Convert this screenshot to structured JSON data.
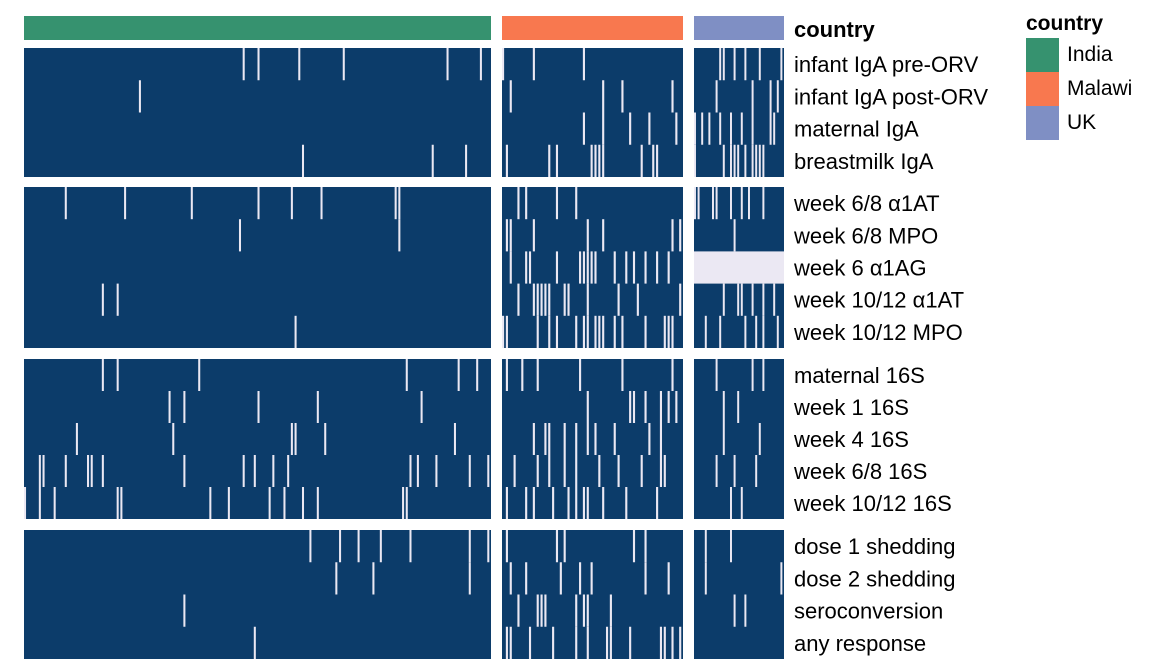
{
  "chart_data": {
    "type": "heatmap",
    "annotation_label": "country",
    "legend": {
      "title": "country",
      "placement": "right",
      "items": [
        {
          "name": "India",
          "color": "#36926f"
        },
        {
          "name": "Malawi",
          "color": "#f8784f"
        },
        {
          "name": "UK",
          "color": "#7f8fc4"
        }
      ]
    },
    "columns": [
      {
        "country": "India",
        "n": 126,
        "color": "#36926f"
      },
      {
        "country": "Malawi",
        "n": 47,
        "color": "#f8784f"
      },
      {
        "country": "UK",
        "n": 25,
        "color": "#7f8fc4"
      }
    ],
    "value_colors": {
      "present": "#0c3c6a",
      "missing": "#ebe8f3"
    },
    "row_groups": [
      {
        "rows": [
          "infant IgA pre-ORV",
          "infant IgA post-ORV",
          "maternal IgA",
          "breastmilk IgA"
        ]
      },
      {
        "rows": [
          "week 6/8 α1AT",
          "week 6/8 MPO",
          "week 6 α1AG",
          "week 10/12 α1AT",
          "week 10/12 MPO"
        ]
      },
      {
        "rows": [
          "maternal 16S",
          "week 1 16S",
          "week 4 16S",
          "week 6/8 16S",
          "week 10/12 16S"
        ]
      },
      {
        "rows": [
          "dose 1 shedding",
          "dose 2 shedding",
          "seroconversion",
          "any response"
        ]
      }
    ],
    "missingness": {
      "India": [
        [
          3,
          1,
          0,
          1
        ],
        [
          5,
          2,
          0,
          1,
          1
        ],
        [
          4,
          6,
          5,
          10,
          9
        ],
        [
          4,
          3,
          1,
          1
        ]
      ],
      "Malawi": [
        [
          10,
          12,
          20,
          25
        ],
        [
          14,
          15,
          25,
          25,
          30
        ],
        [
          18,
          18,
          24,
          28,
          28
        ],
        [
          12,
          15,
          16,
          20
        ]
      ],
      "UK": [
        [
          12,
          18,
          20,
          28
        ],
        [
          16,
          12,
          100,
          18,
          20
        ],
        [
          10,
          6,
          5,
          6,
          6
        ],
        [
          8,
          8,
          6,
          6
        ]
      ]
    }
  }
}
